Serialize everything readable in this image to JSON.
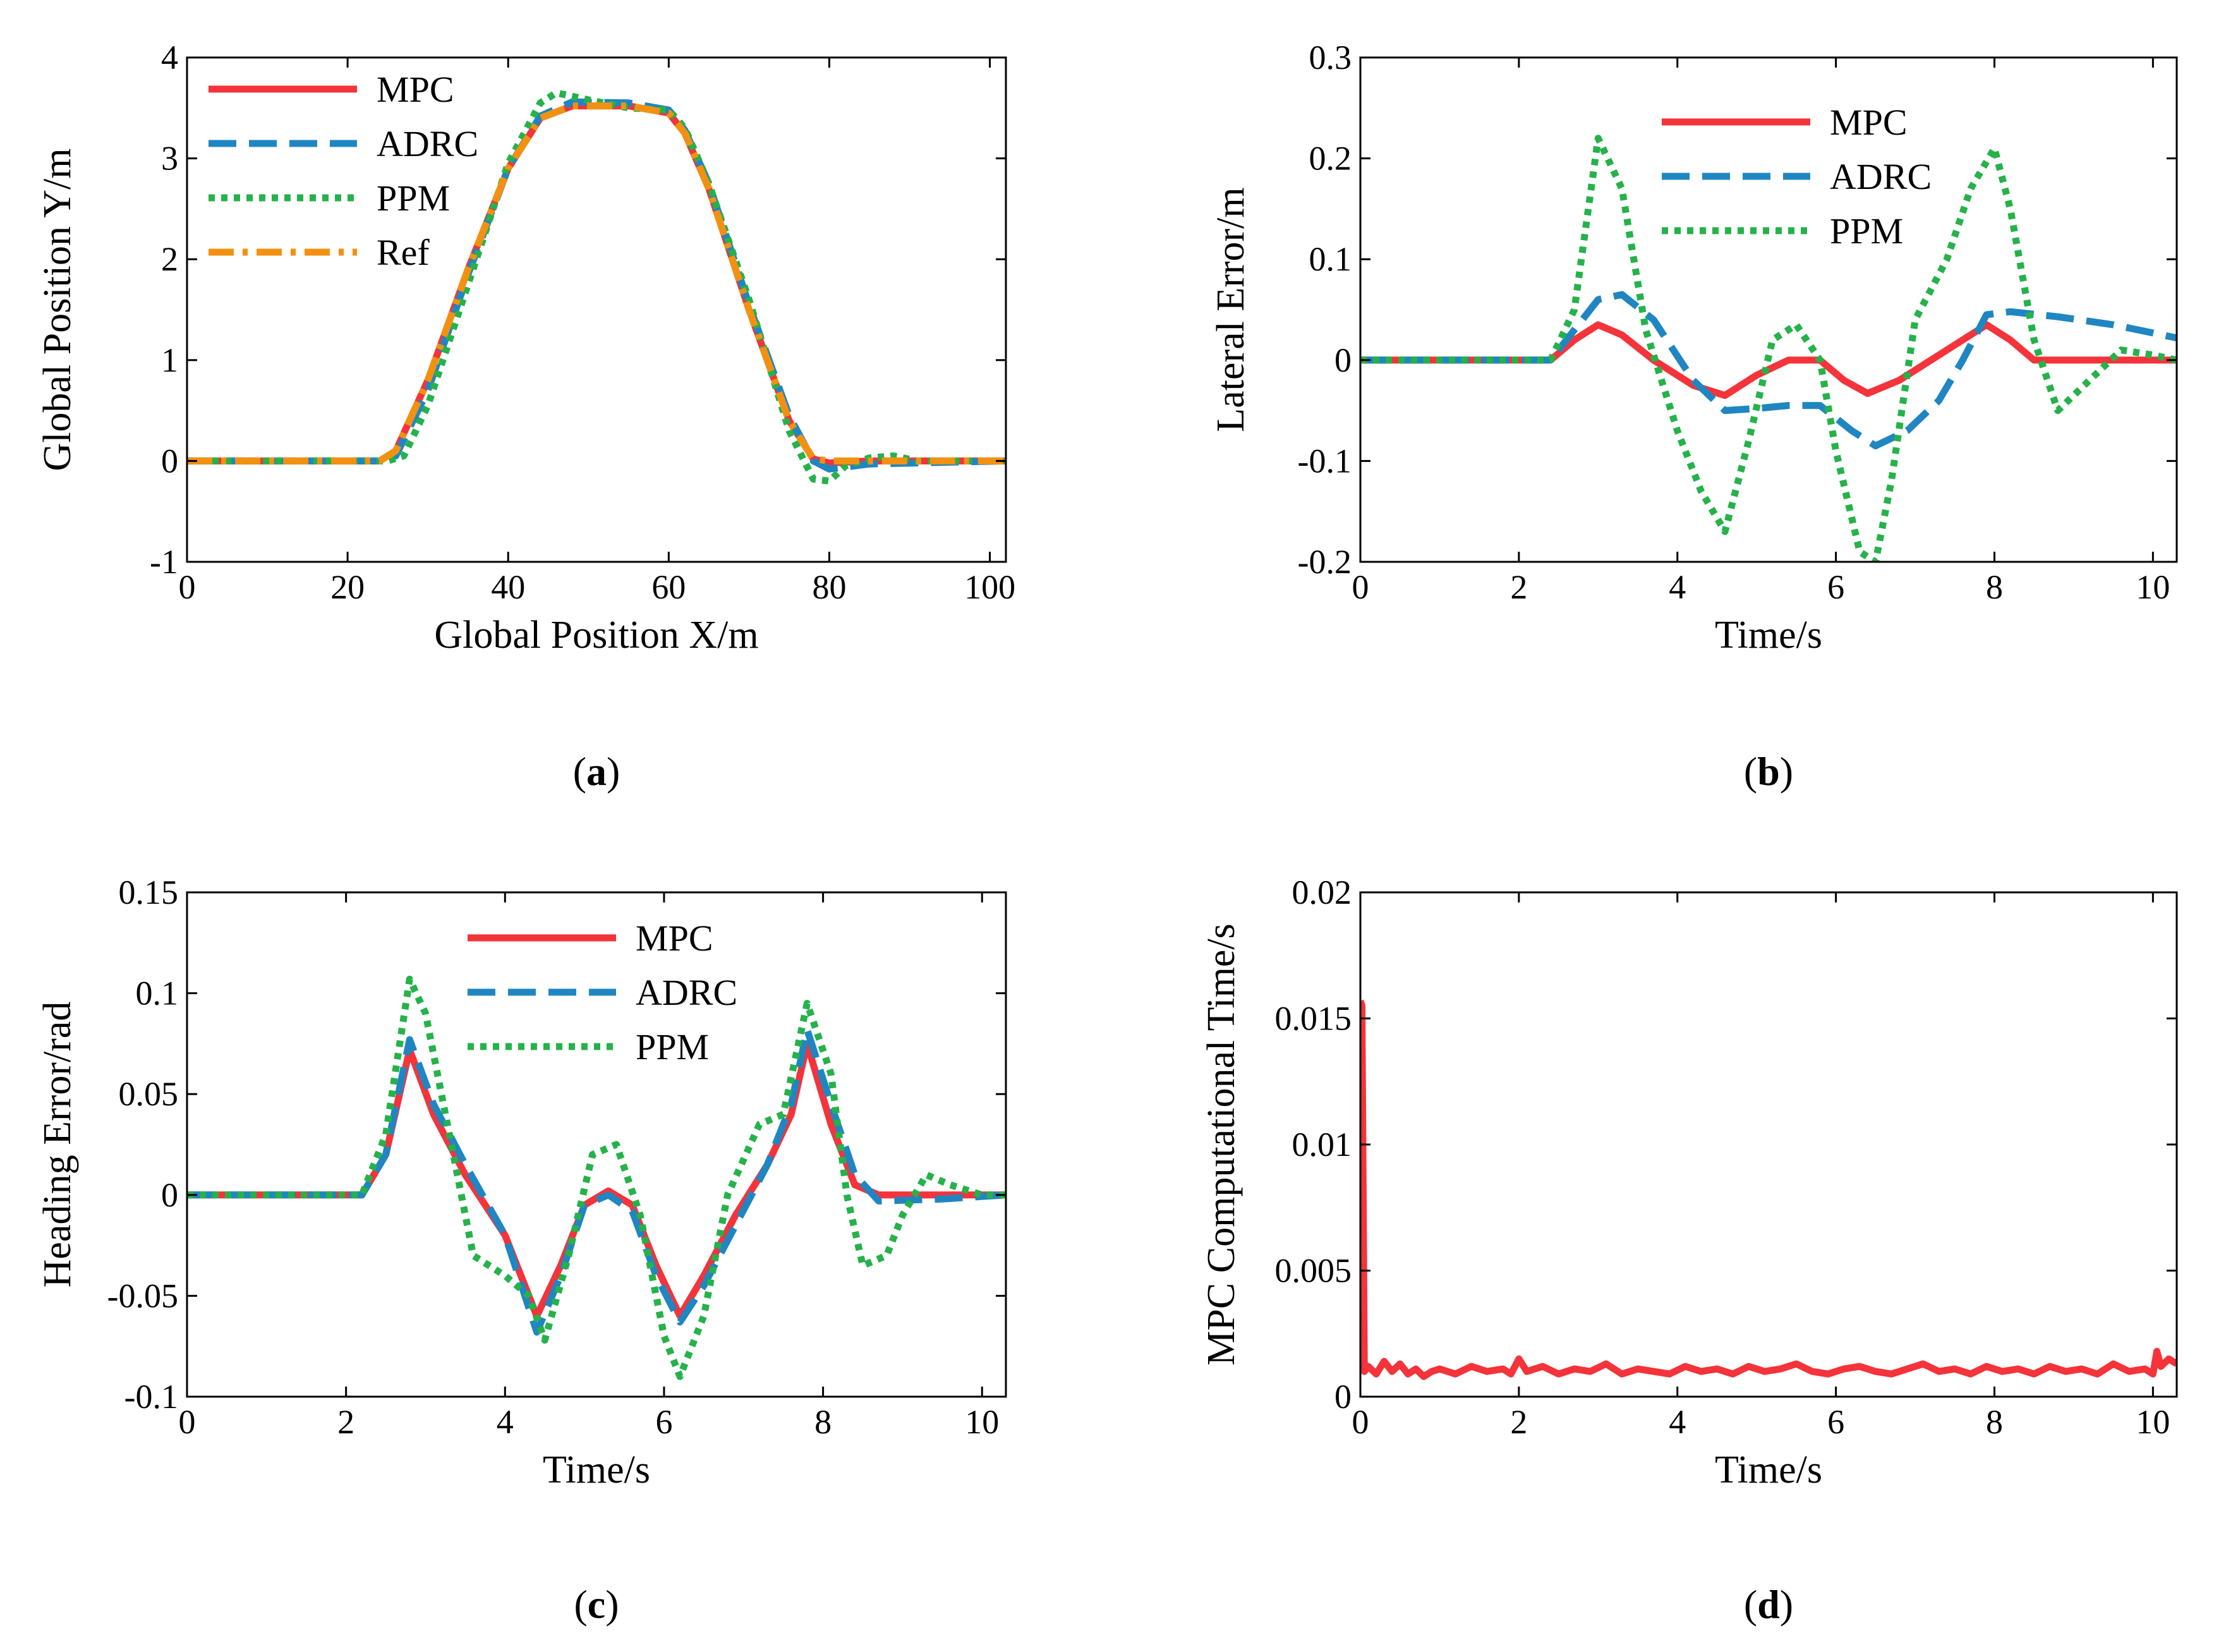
{
  "colors": {
    "MPC": "#f4333a",
    "ADRC": "#1f86c2",
    "PPM": "#25b24a",
    "Ref": "#f29111"
  },
  "chart_data": [
    {
      "type": "line",
      "caption": "a",
      "xlabel": "Global Position X/m",
      "ylabel": "Global Position Y/m",
      "xlim": [
        0,
        102
      ],
      "ylim": [
        -1,
        4
      ],
      "xticks": [
        "0",
        "20",
        "40",
        "60",
        "80",
        "100"
      ],
      "yticks": [
        "-1",
        "0",
        "1",
        "2",
        "3",
        "4"
      ],
      "grid": false,
      "legend_position": "top-left",
      "series": [
        {
          "name": "MPC",
          "style": "solid",
          "x": [
            0,
            24,
            26,
            30,
            35,
            40,
            44,
            48,
            55,
            60,
            62,
            65,
            70,
            75,
            78,
            80,
            85,
            102
          ],
          "y": [
            0,
            0,
            0.1,
            0.8,
            1.9,
            2.9,
            3.4,
            3.52,
            3.52,
            3.45,
            3.25,
            2.7,
            1.5,
            0.4,
            0.02,
            -0.02,
            0,
            0
          ]
        },
        {
          "name": "ADRC",
          "style": "dashed",
          "x": [
            0,
            24,
            26,
            30,
            35,
            40,
            44,
            48,
            55,
            60,
            62,
            65,
            70,
            75,
            78,
            80,
            85,
            102
          ],
          "y": [
            0,
            0,
            0.05,
            0.7,
            1.85,
            2.9,
            3.42,
            3.56,
            3.55,
            3.48,
            3.28,
            2.75,
            1.55,
            0.45,
            0.0,
            -0.08,
            -0.03,
            0
          ]
        },
        {
          "name": "PPM",
          "style": "dotted",
          "x": [
            0,
            25,
            27,
            30,
            35,
            40,
            44,
            46,
            50,
            55,
            60,
            62,
            65,
            70,
            75,
            78,
            80,
            82,
            85,
            88,
            91,
            102
          ],
          "y": [
            0,
            0,
            0.05,
            0.55,
            1.75,
            2.95,
            3.55,
            3.65,
            3.58,
            3.5,
            3.48,
            3.3,
            2.75,
            1.6,
            0.3,
            -0.18,
            -0.2,
            -0.05,
            0.03,
            0.05,
            0.0,
            0
          ]
        },
        {
          "name": "Ref",
          "style": "dashdot",
          "x": [
            0,
            24,
            26,
            30,
            35,
            40,
            44,
            48,
            55,
            60,
            62,
            65,
            70,
            75,
            78,
            80,
            102
          ],
          "y": [
            0,
            0,
            0.1,
            0.8,
            1.9,
            2.9,
            3.4,
            3.52,
            3.52,
            3.45,
            3.25,
            2.7,
            1.5,
            0.4,
            0.02,
            0,
            0
          ]
        }
      ]
    },
    {
      "type": "line",
      "caption": "b",
      "xlabel": "Time/s",
      "ylabel": "Lateral Error/m",
      "xlim": [
        0,
        10.3
      ],
      "ylim": [
        -0.2,
        0.3
      ],
      "xticks": [
        "0",
        "2",
        "4",
        "6",
        "8",
        "10"
      ],
      "yticks": [
        "-0.2",
        "-0.1",
        "0",
        "0.1",
        "0.2",
        "0.3"
      ],
      "grid": false,
      "legend_position": "top-center",
      "series": [
        {
          "name": "MPC",
          "style": "solid",
          "x": [
            0,
            2.4,
            2.7,
            3.0,
            3.3,
            3.7,
            4.2,
            4.6,
            5.0,
            5.4,
            5.8,
            6.1,
            6.4,
            6.8,
            7.2,
            7.6,
            7.9,
            8.2,
            8.5,
            9,
            10.3
          ],
          "y": [
            0,
            0,
            0.02,
            0.035,
            0.025,
            0,
            -0.025,
            -0.035,
            -0.015,
            0,
            0,
            -0.02,
            -0.033,
            -0.02,
            0,
            0.02,
            0.035,
            0.02,
            0,
            0,
            0
          ]
        },
        {
          "name": "ADRC",
          "style": "dashed",
          "x": [
            0,
            2.4,
            2.7,
            3.0,
            3.3,
            3.7,
            4.2,
            4.6,
            5.0,
            5.4,
            5.8,
            6.2,
            6.5,
            6.9,
            7.3,
            7.6,
            7.9,
            8.2,
            8.8,
            9.5,
            10.3
          ],
          "y": [
            0,
            0,
            0.03,
            0.06,
            0.065,
            0.04,
            -0.02,
            -0.05,
            -0.048,
            -0.045,
            -0.045,
            -0.07,
            -0.085,
            -0.07,
            -0.04,
            0,
            0.045,
            0.048,
            0.043,
            0.035,
            0.022
          ]
        },
        {
          "name": "PPM",
          "style": "dotted",
          "x": [
            0,
            2.4,
            2.7,
            3.0,
            3.3,
            3.6,
            4.0,
            4.3,
            4.6,
            4.9,
            5.2,
            5.5,
            5.8,
            6.0,
            6.3,
            6.5,
            6.7,
            7.0,
            7.4,
            7.7,
            8.0,
            8.2,
            8.5,
            8.8,
            9.2,
            9.6,
            10.0,
            10.3
          ],
          "y": [
            0,
            0,
            0.05,
            0.22,
            0.17,
            0.03,
            -0.07,
            -0.13,
            -0.17,
            -0.08,
            0.02,
            0.035,
            0.0,
            -0.09,
            -0.19,
            -0.2,
            -0.12,
            0.04,
            0.1,
            0.17,
            0.21,
            0.15,
            0.02,
            -0.05,
            -0.02,
            0.01,
            0.005,
            0
          ]
        }
      ]
    },
    {
      "type": "line",
      "caption": "c",
      "xlabel": "Time/s",
      "ylabel": "Heading Error/rad",
      "xlim": [
        0,
        10.3
      ],
      "ylim": [
        -0.1,
        0.15
      ],
      "xticks": [
        "0",
        "2",
        "4",
        "6",
        "8",
        "10"
      ],
      "yticks": [
        "-0.1",
        "-0.05",
        "0",
        "0.05",
        "0.1",
        "0.15"
      ],
      "grid": false,
      "legend_position": "top-center",
      "series": [
        {
          "name": "MPC",
          "style": "solid",
          "x": [
            0,
            2.2,
            2.5,
            2.8,
            3.1,
            3.5,
            4.0,
            4.4,
            4.7,
            5.0,
            5.3,
            5.6,
            5.9,
            6.2,
            6.5,
            6.9,
            7.3,
            7.6,
            7.8,
            8.1,
            8.4,
            8.7,
            10.3
          ],
          "y": [
            0,
            0,
            0.02,
            0.072,
            0.04,
            0.01,
            -0.02,
            -0.06,
            -0.035,
            -0.005,
            0.002,
            -0.005,
            -0.035,
            -0.06,
            -0.04,
            -0.01,
            0.015,
            0.04,
            0.075,
            0.035,
            0.005,
            0,
            0
          ]
        },
        {
          "name": "ADRC",
          "style": "dashed",
          "x": [
            0,
            2.2,
            2.5,
            2.8,
            3.1,
            3.5,
            4.0,
            4.4,
            4.7,
            5.0,
            5.3,
            5.6,
            5.9,
            6.2,
            6.5,
            6.9,
            7.3,
            7.6,
            7.8,
            8.1,
            8.4,
            8.7,
            9.5,
            10.3
          ],
          "y": [
            0,
            0,
            0.02,
            0.077,
            0.045,
            0.015,
            -0.02,
            -0.068,
            -0.04,
            -0.005,
            0.0,
            -0.008,
            -0.04,
            -0.063,
            -0.045,
            -0.015,
            0.015,
            0.045,
            0.082,
            0.045,
            0.01,
            -0.003,
            -0.002,
            0
          ]
        },
        {
          "name": "PPM",
          "style": "dotted",
          "x": [
            0,
            2.2,
            2.5,
            2.8,
            3.0,
            3.3,
            3.6,
            4.0,
            4.3,
            4.5,
            4.8,
            5.1,
            5.4,
            5.7,
            6.0,
            6.2,
            6.5,
            6.8,
            7.2,
            7.5,
            7.8,
            8.1,
            8.3,
            8.5,
            8.8,
            9.0,
            9.3,
            9.6,
            10.0,
            10.3
          ],
          "y": [
            0,
            0,
            0.03,
            0.107,
            0.09,
            0.03,
            -0.03,
            -0.04,
            -0.05,
            -0.072,
            -0.03,
            0.02,
            0.025,
            -0.01,
            -0.07,
            -0.09,
            -0.06,
            0.0,
            0.035,
            0.04,
            0.095,
            0.06,
            0.0,
            -0.035,
            -0.03,
            -0.01,
            0.01,
            0.005,
            0,
            0
          ]
        }
      ]
    },
    {
      "type": "line",
      "caption": "d",
      "xlabel": "Time/s",
      "ylabel": "MPC Computational Time/s",
      "xlim": [
        0,
        10.3
      ],
      "ylim": [
        0,
        0.02
      ],
      "xticks": [
        "0",
        "2",
        "4",
        "6",
        "8",
        "10"
      ],
      "yticks": [
        "0",
        "0.005",
        "0.01",
        "0.015",
        "0.02"
      ],
      "grid": false,
      "legend_position": "none",
      "series": [
        {
          "name": "MPC",
          "style": "solid",
          "x": [
            0,
            0.02,
            0.05,
            0.1,
            0.2,
            0.3,
            0.4,
            0.5,
            0.6,
            0.7,
            0.8,
            0.9,
            1.0,
            1.2,
            1.4,
            1.6,
            1.8,
            1.9,
            2.0,
            2.1,
            2.3,
            2.5,
            2.7,
            2.9,
            3.1,
            3.3,
            3.5,
            3.7,
            3.9,
            4.1,
            4.3,
            4.5,
            4.7,
            4.9,
            5.1,
            5.3,
            5.5,
            5.7,
            5.9,
            6.1,
            6.3,
            6.5,
            6.7,
            6.9,
            7.1,
            7.3,
            7.5,
            7.7,
            7.9,
            8.1,
            8.3,
            8.5,
            8.7,
            8.9,
            9.1,
            9.3,
            9.5,
            9.7,
            9.9,
            10.0,
            10.05,
            10.1,
            10.2,
            10.3
          ],
          "y": [
            0.0157,
            0.0155,
            0.001,
            0.0012,
            0.0009,
            0.0014,
            0.001,
            0.0013,
            0.0009,
            0.0011,
            0.0008,
            0.001,
            0.0011,
            0.0009,
            0.0012,
            0.001,
            0.0011,
            0.0009,
            0.0015,
            0.001,
            0.0012,
            0.0009,
            0.0011,
            0.001,
            0.0013,
            0.0009,
            0.0011,
            0.001,
            0.0009,
            0.0012,
            0.001,
            0.0011,
            0.0009,
            0.0012,
            0.001,
            0.0011,
            0.0013,
            0.001,
            0.0009,
            0.0011,
            0.0012,
            0.001,
            0.0009,
            0.0011,
            0.0013,
            0.001,
            0.0011,
            0.0009,
            0.0012,
            0.001,
            0.0011,
            0.0009,
            0.0012,
            0.001,
            0.0011,
            0.0009,
            0.0013,
            0.001,
            0.0011,
            0.0009,
            0.0018,
            0.0012,
            0.0015,
            0.0013
          ]
        }
      ]
    }
  ]
}
